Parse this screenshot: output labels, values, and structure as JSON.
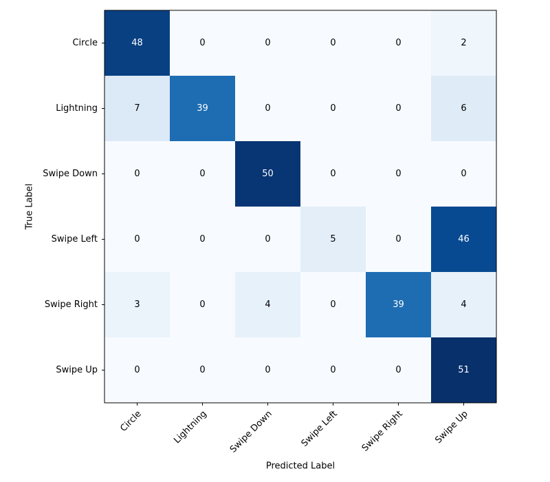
{
  "chart_data": {
    "type": "heatmap",
    "x_label": "Predicted Label",
    "y_label": "True Label",
    "x_categories": [
      "Circle",
      "Lightning",
      "Swipe Down",
      "Swipe Left",
      "Swipe Right",
      "Swipe Up"
    ],
    "y_categories": [
      "Circle",
      "Lightning",
      "Swipe Down",
      "Swipe Left",
      "Swipe Right",
      "Swipe Up"
    ],
    "values": [
      [
        48,
        0,
        0,
        0,
        0,
        2
      ],
      [
        7,
        39,
        0,
        0,
        0,
        6
      ],
      [
        0,
        0,
        50,
        0,
        0,
        0
      ],
      [
        0,
        0,
        0,
        5,
        0,
        46
      ],
      [
        3,
        0,
        4,
        0,
        39,
        4
      ],
      [
        0,
        0,
        0,
        0,
        0,
        51
      ]
    ],
    "colormap": "Blues"
  }
}
